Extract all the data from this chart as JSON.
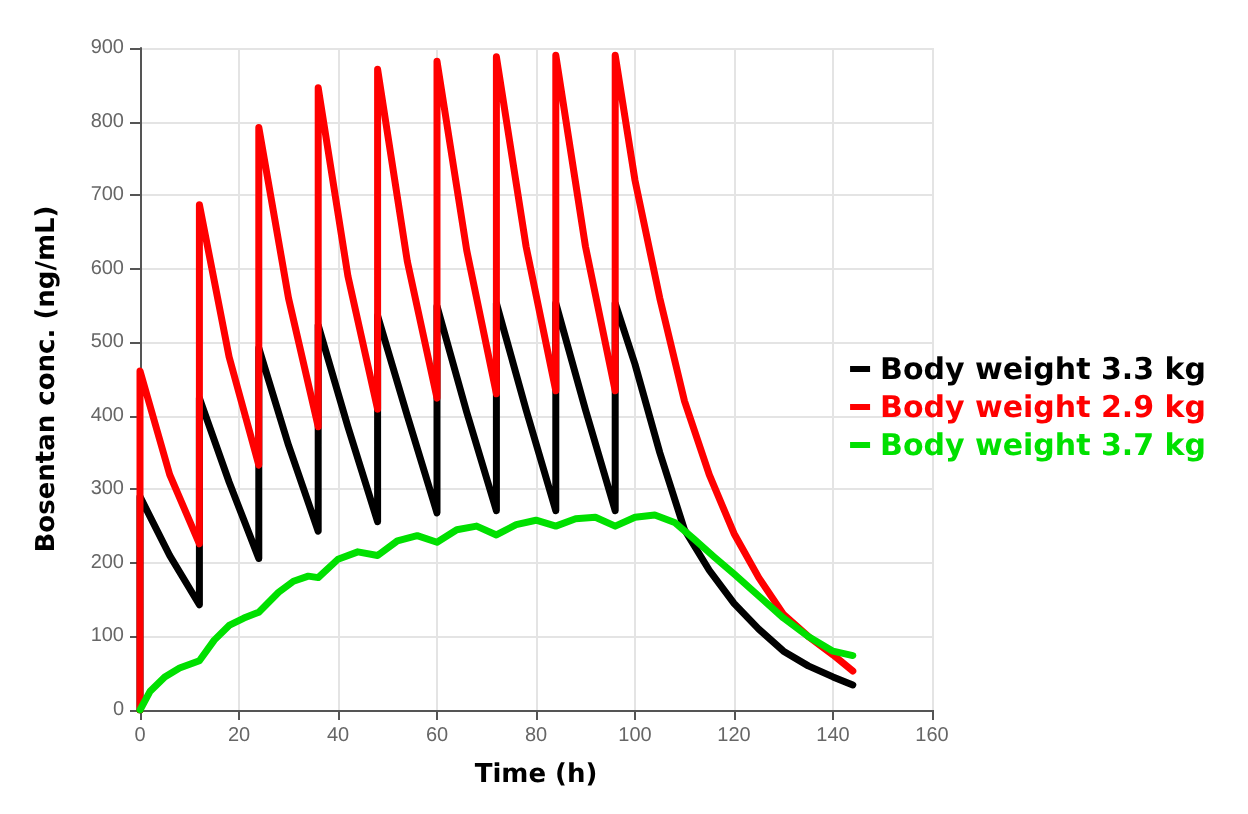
{
  "chart_data": {
    "type": "line",
    "xlabel": "Time (h)",
    "ylabel": "Bosentan conc. (ng/mL)",
    "xlim": [
      0,
      160
    ],
    "xticks": [
      0,
      20,
      40,
      60,
      80,
      100,
      120,
      140,
      160
    ],
    "ylim": [
      0,
      900
    ],
    "yticks": [
      0,
      100,
      200,
      300,
      400,
      500,
      600,
      700,
      800,
      900
    ],
    "grid": true,
    "legend": "right",
    "marker": "none",
    "line_style": "solid",
    "series": [
      {
        "name": "Body weight 3.3 kg",
        "color": "#000000",
        "x": [
          0,
          0,
          6,
          12,
          12,
          18,
          24,
          24,
          30,
          36,
          36,
          42,
          48,
          48,
          54,
          60,
          60,
          66,
          72,
          72,
          78,
          84,
          84,
          90,
          96,
          96,
          100,
          105,
          110,
          115,
          120,
          125,
          130,
          135,
          140,
          144
        ],
        "values": [
          0,
          290,
          210,
          143,
          424,
          310,
          206,
          492,
          360,
          243,
          523,
          385,
          256,
          536,
          400,
          268,
          549,
          405,
          271,
          553,
          408,
          271,
          553,
          408,
          271,
          553,
          470,
          350,
          245,
          190,
          145,
          110,
          80,
          60,
          45,
          34
        ]
      },
      {
        "name": "Body weight 2.9 kg",
        "color": "#ff0000",
        "x": [
          0,
          0,
          6,
          12,
          12,
          18,
          24,
          24,
          30,
          36,
          36,
          42,
          48,
          48,
          54,
          60,
          60,
          66,
          72,
          72,
          78,
          84,
          84,
          90,
          96,
          96,
          100,
          105,
          110,
          115,
          120,
          125,
          130,
          135,
          140,
          144
        ],
        "values": [
          0,
          461,
          320,
          226,
          687,
          480,
          333,
          792,
          560,
          385,
          846,
          590,
          409,
          871,
          610,
          424,
          882,
          625,
          430,
          888,
          630,
          434,
          890,
          630,
          434,
          890,
          720,
          560,
          420,
          320,
          240,
          180,
          130,
          100,
          75,
          53
        ]
      },
      {
        "name": "Body weight 3.7 kg",
        "color": "#00e000",
        "x": [
          0,
          2,
          5,
          8,
          12,
          15,
          18,
          21,
          24,
          28,
          31,
          34,
          36,
          40,
          44,
          48,
          52,
          56,
          60,
          64,
          68,
          72,
          76,
          80,
          84,
          88,
          92,
          96,
          100,
          104,
          108,
          112,
          116,
          120,
          125,
          130,
          135,
          140,
          144
        ],
        "values": [
          0,
          25,
          45,
          57,
          67,
          95,
          115,
          125,
          133,
          160,
          175,
          182,
          180,
          205,
          215,
          210,
          230,
          237,
          228,
          245,
          250,
          238,
          252,
          258,
          250,
          260,
          262,
          250,
          262,
          265,
          255,
          232,
          208,
          185,
          155,
          125,
          100,
          80,
          74
        ]
      }
    ]
  }
}
